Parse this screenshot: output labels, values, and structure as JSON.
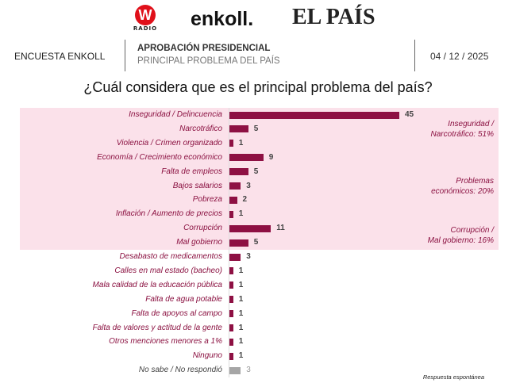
{
  "logos": {
    "wradio": "W",
    "wradio_sub": "RADIO",
    "enkoll": "enkoll.",
    "elpais": "EL PAÍS"
  },
  "header": {
    "left": "ENCUESTA ENKOLL",
    "title": "APROBACIÓN PRESIDENCIAL",
    "subtitle": "PRINCIPAL PROBLEMA DEL PAÍS",
    "date": "04 / 12 / 2025"
  },
  "colors": {
    "bar": "#8e1043",
    "na_bar": "#a6a6a6",
    "band": "#fbe1ea"
  },
  "chart_data": {
    "type": "bar",
    "orientation": "horizontal",
    "title": "¿Cuál considera que es el principal problema del país?",
    "categories": [
      "Inseguridad / Delincuencia",
      "Narcotráfico",
      "Violencia / Crimen organizado",
      "Economía / Crecimiento económico",
      "Falta de empleos",
      "Bajos salarios",
      "Pobreza",
      "Inflación / Aumento de precios",
      "Corrupción",
      "Mal gobierno",
      "Desabasto de medicamentos",
      "Calles en mal estado (bacheo)",
      "Mala calidad de la educación pública",
      "Falta de agua potable",
      "Falta de apoyos al campo",
      "Falta de valores y actitud de la gente",
      "Otros menciones menores a 1%",
      "Ninguno",
      "No sabe / No respondió"
    ],
    "values": [
      45,
      5,
      1,
      9,
      5,
      3,
      2,
      1,
      11,
      5,
      3,
      1,
      1,
      1,
      1,
      1,
      1,
      1,
      3
    ],
    "groups": [
      {
        "label": "Inseguridad / Narcotráfico: 51%",
        "line1": "Inseguridad /",
        "line2": "Narcotráfico: 51%",
        "from": 0,
        "to": 2
      },
      {
        "label": "Problemas económicos: 20%",
        "line1": "Problemas",
        "line2": "económicos: 20%",
        "from": 3,
        "to": 7
      },
      {
        "label": "Corrupción / Mal gobierno: 16%",
        "line1": "Corrupción /",
        "line2": "Mal gobierno: 16%",
        "from": 8,
        "to": 9
      }
    ],
    "note": "Respuesta espontánea",
    "xlim": [
      0,
      45
    ]
  }
}
